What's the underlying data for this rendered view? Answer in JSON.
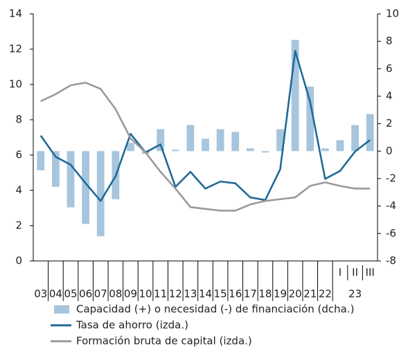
{
  "chart_data": {
    "type": "bar-line",
    "categories": [
      "03",
      "04",
      "05",
      "06",
      "07",
      "08",
      "09",
      "10",
      "11",
      "12",
      "13",
      "14",
      "15",
      "16",
      "17",
      "18",
      "19",
      "20",
      "21",
      "22",
      "I",
      "II",
      "III"
    ],
    "quarter_group": {
      "label": "23",
      "from": 20,
      "to": 22
    },
    "ylim": [
      0,
      14
    ],
    "yticks": [
      0,
      2,
      4,
      6,
      8,
      10,
      12,
      14
    ],
    "y2lim": [
      -8,
      10
    ],
    "y2ticks": [
      -8,
      -6,
      -4,
      -2,
      0,
      2,
      4,
      6,
      8,
      10
    ],
    "legend": "bottom",
    "series": [
      {
        "name": "Capacidad (+) o necesidad (-) de financiación (dcha.)",
        "type": "bar",
        "axis": "y2",
        "color": "#a7c5dd",
        "values": [
          -1.4,
          -2.6,
          -4.1,
          -5.3,
          -6.2,
          -3.5,
          0.6,
          -0.2,
          1.6,
          0.1,
          1.9,
          0.9,
          1.6,
          1.4,
          0.2,
          -0.1,
          1.6,
          8.1,
          4.7,
          0.2,
          0.8,
          1.9,
          2.7
        ]
      },
      {
        "name": "Tasa de ahorro (izda.)",
        "type": "line",
        "color": "#1f6a96",
        "values": [
          7.1,
          5.9,
          5.45,
          4.4,
          3.4,
          4.8,
          7.2,
          6.15,
          6.6,
          4.2,
          5.05,
          4.1,
          4.5,
          4.4,
          3.6,
          3.45,
          5.2,
          11.9,
          9.0,
          4.65,
          5.1,
          6.2,
          6.85
        ]
      },
      {
        "name": "Formación bruta de capital (izda.)",
        "type": "line",
        "color": "#9a9a9a",
        "values": [
          9.05,
          9.45,
          9.95,
          10.1,
          9.75,
          8.6,
          6.95,
          6.15,
          5.05,
          4.1,
          3.05,
          2.95,
          2.85,
          2.85,
          3.2,
          3.4,
          3.5,
          3.6,
          4.25,
          4.45,
          4.25,
          4.1,
          4.1
        ]
      }
    ]
  }
}
